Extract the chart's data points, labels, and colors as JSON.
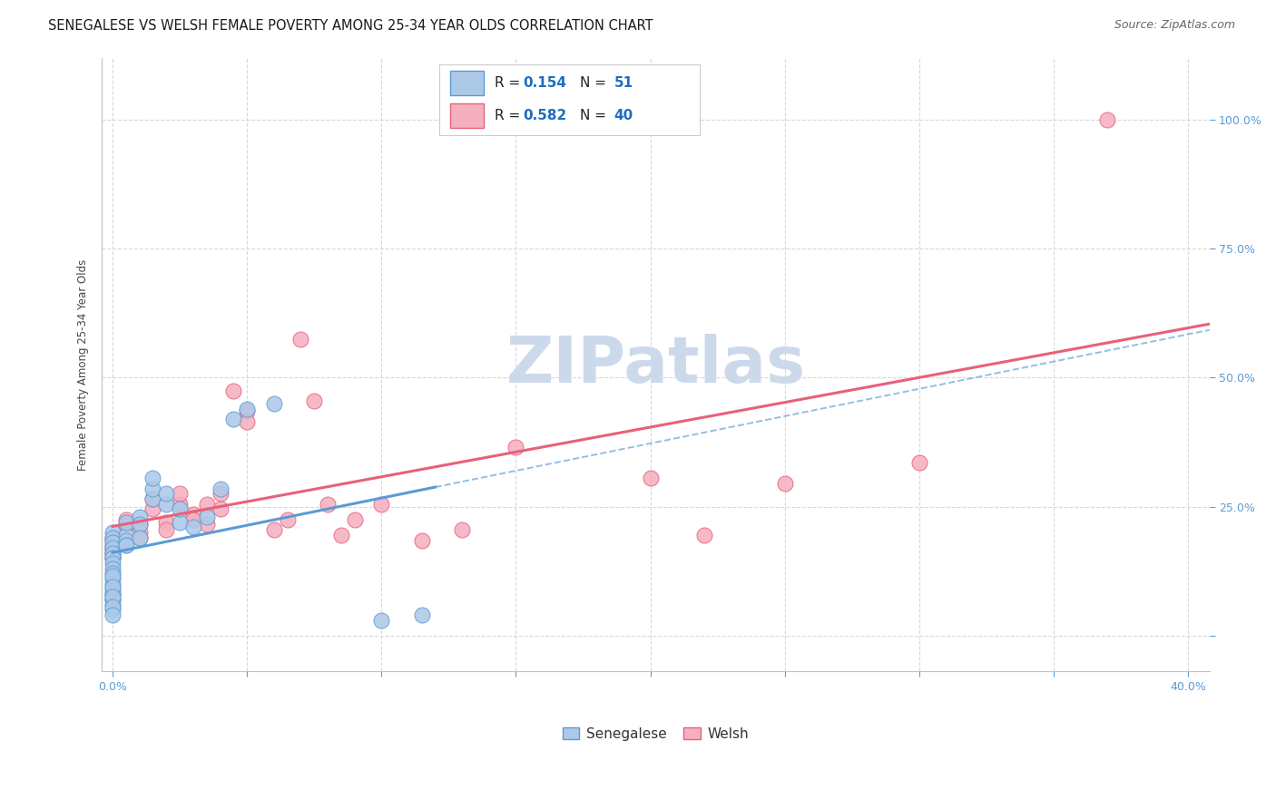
{
  "title": "SENEGALESE VS WELSH FEMALE POVERTY AMONG 25-34 YEAR OLDS CORRELATION CHART",
  "source": "Source: ZipAtlas.com",
  "ylabel_label": "Female Poverty Among 25-34 Year Olds",
  "xlim": [
    -0.004,
    0.408
  ],
  "ylim": [
    -0.07,
    1.12
  ],
  "xticks": [
    0.0,
    0.05,
    0.1,
    0.15,
    0.2,
    0.25,
    0.3,
    0.35,
    0.4
  ],
  "yticks": [
    0.0,
    0.25,
    0.5,
    0.75,
    1.0
  ],
  "xtick_labels_show": [
    "0.0%",
    "",
    "",
    "",
    "",
    "",
    "",
    "",
    "40.0%"
  ],
  "ytick_labels_show": [
    "",
    "25.0%",
    "50.0%",
    "75.0%",
    "100.0%"
  ],
  "sen_fill": "#adc9e8",
  "sen_edge": "#5b9bd5",
  "welsh_fill": "#f5b0c0",
  "welsh_edge": "#e8607a",
  "trend_blue": "#5b9bd5",
  "trend_pink": "#e8607a",
  "grid_color": "#d8d8d8",
  "watermark_color": "#ccd9ea",
  "legend_R_sen": "0.154",
  "legend_N_sen": "51",
  "legend_R_welsh": "0.582",
  "legend_N_welsh": "40",
  "R_N_color": "#1f6dbf",
  "senegalese_x": [
    0.0,
    0.0,
    0.0,
    0.0,
    0.0,
    0.0,
    0.0,
    0.0,
    0.0,
    0.0,
    0.0,
    0.0,
    0.0,
    0.0,
    0.0,
    0.0,
    0.0,
    0.0,
    0.0,
    0.0,
    0.0,
    0.0,
    0.0,
    0.0,
    0.0,
    0.0,
    0.0,
    0.0,
    0.005,
    0.005,
    0.005,
    0.005,
    0.005,
    0.01,
    0.01,
    0.01,
    0.015,
    0.015,
    0.015,
    0.02,
    0.02,
    0.025,
    0.025,
    0.03,
    0.035,
    0.04,
    0.045,
    0.05,
    0.06,
    0.1,
    0.115
  ],
  "senegalese_y": [
    0.185,
    0.2,
    0.16,
    0.175,
    0.165,
    0.19,
    0.15,
    0.18,
    0.17,
    0.16,
    0.15,
    0.14,
    0.13,
    0.12,
    0.11,
    0.1,
    0.09,
    0.08,
    0.07,
    0.06,
    0.05,
    0.08,
    0.07,
    0.115,
    0.095,
    0.075,
    0.055,
    0.04,
    0.195,
    0.185,
    0.175,
    0.22,
    0.175,
    0.23,
    0.215,
    0.19,
    0.265,
    0.285,
    0.305,
    0.255,
    0.275,
    0.22,
    0.245,
    0.21,
    0.23,
    0.285,
    0.42,
    0.44,
    0.45,
    0.03,
    0.04
  ],
  "welsh_x": [
    0.0,
    0.0,
    0.0,
    0.0,
    0.005,
    0.005,
    0.01,
    0.01,
    0.01,
    0.015,
    0.015,
    0.02,
    0.02,
    0.025,
    0.025,
    0.03,
    0.03,
    0.035,
    0.035,
    0.04,
    0.04,
    0.045,
    0.05,
    0.05,
    0.06,
    0.065,
    0.07,
    0.075,
    0.08,
    0.085,
    0.09,
    0.1,
    0.115,
    0.13,
    0.15,
    0.2,
    0.22,
    0.25,
    0.3,
    0.37
  ],
  "welsh_y": [
    0.16,
    0.17,
    0.19,
    0.15,
    0.215,
    0.225,
    0.2,
    0.19,
    0.215,
    0.245,
    0.265,
    0.22,
    0.205,
    0.255,
    0.275,
    0.235,
    0.225,
    0.255,
    0.215,
    0.275,
    0.245,
    0.475,
    0.435,
    0.415,
    0.205,
    0.225,
    0.575,
    0.455,
    0.255,
    0.195,
    0.225,
    0.255,
    0.185,
    0.205,
    0.365,
    0.305,
    0.195,
    0.295,
    0.335,
    1.0
  ],
  "background_color": "#ffffff",
  "axis_label_color": "#444444",
  "tick_color": "#5b9bd5",
  "title_fontsize": 10.5,
  "source_fontsize": 9,
  "label_fontsize": 8.5,
  "tick_fontsize": 9,
  "legend_fontsize": 11,
  "scatter_size": 150
}
